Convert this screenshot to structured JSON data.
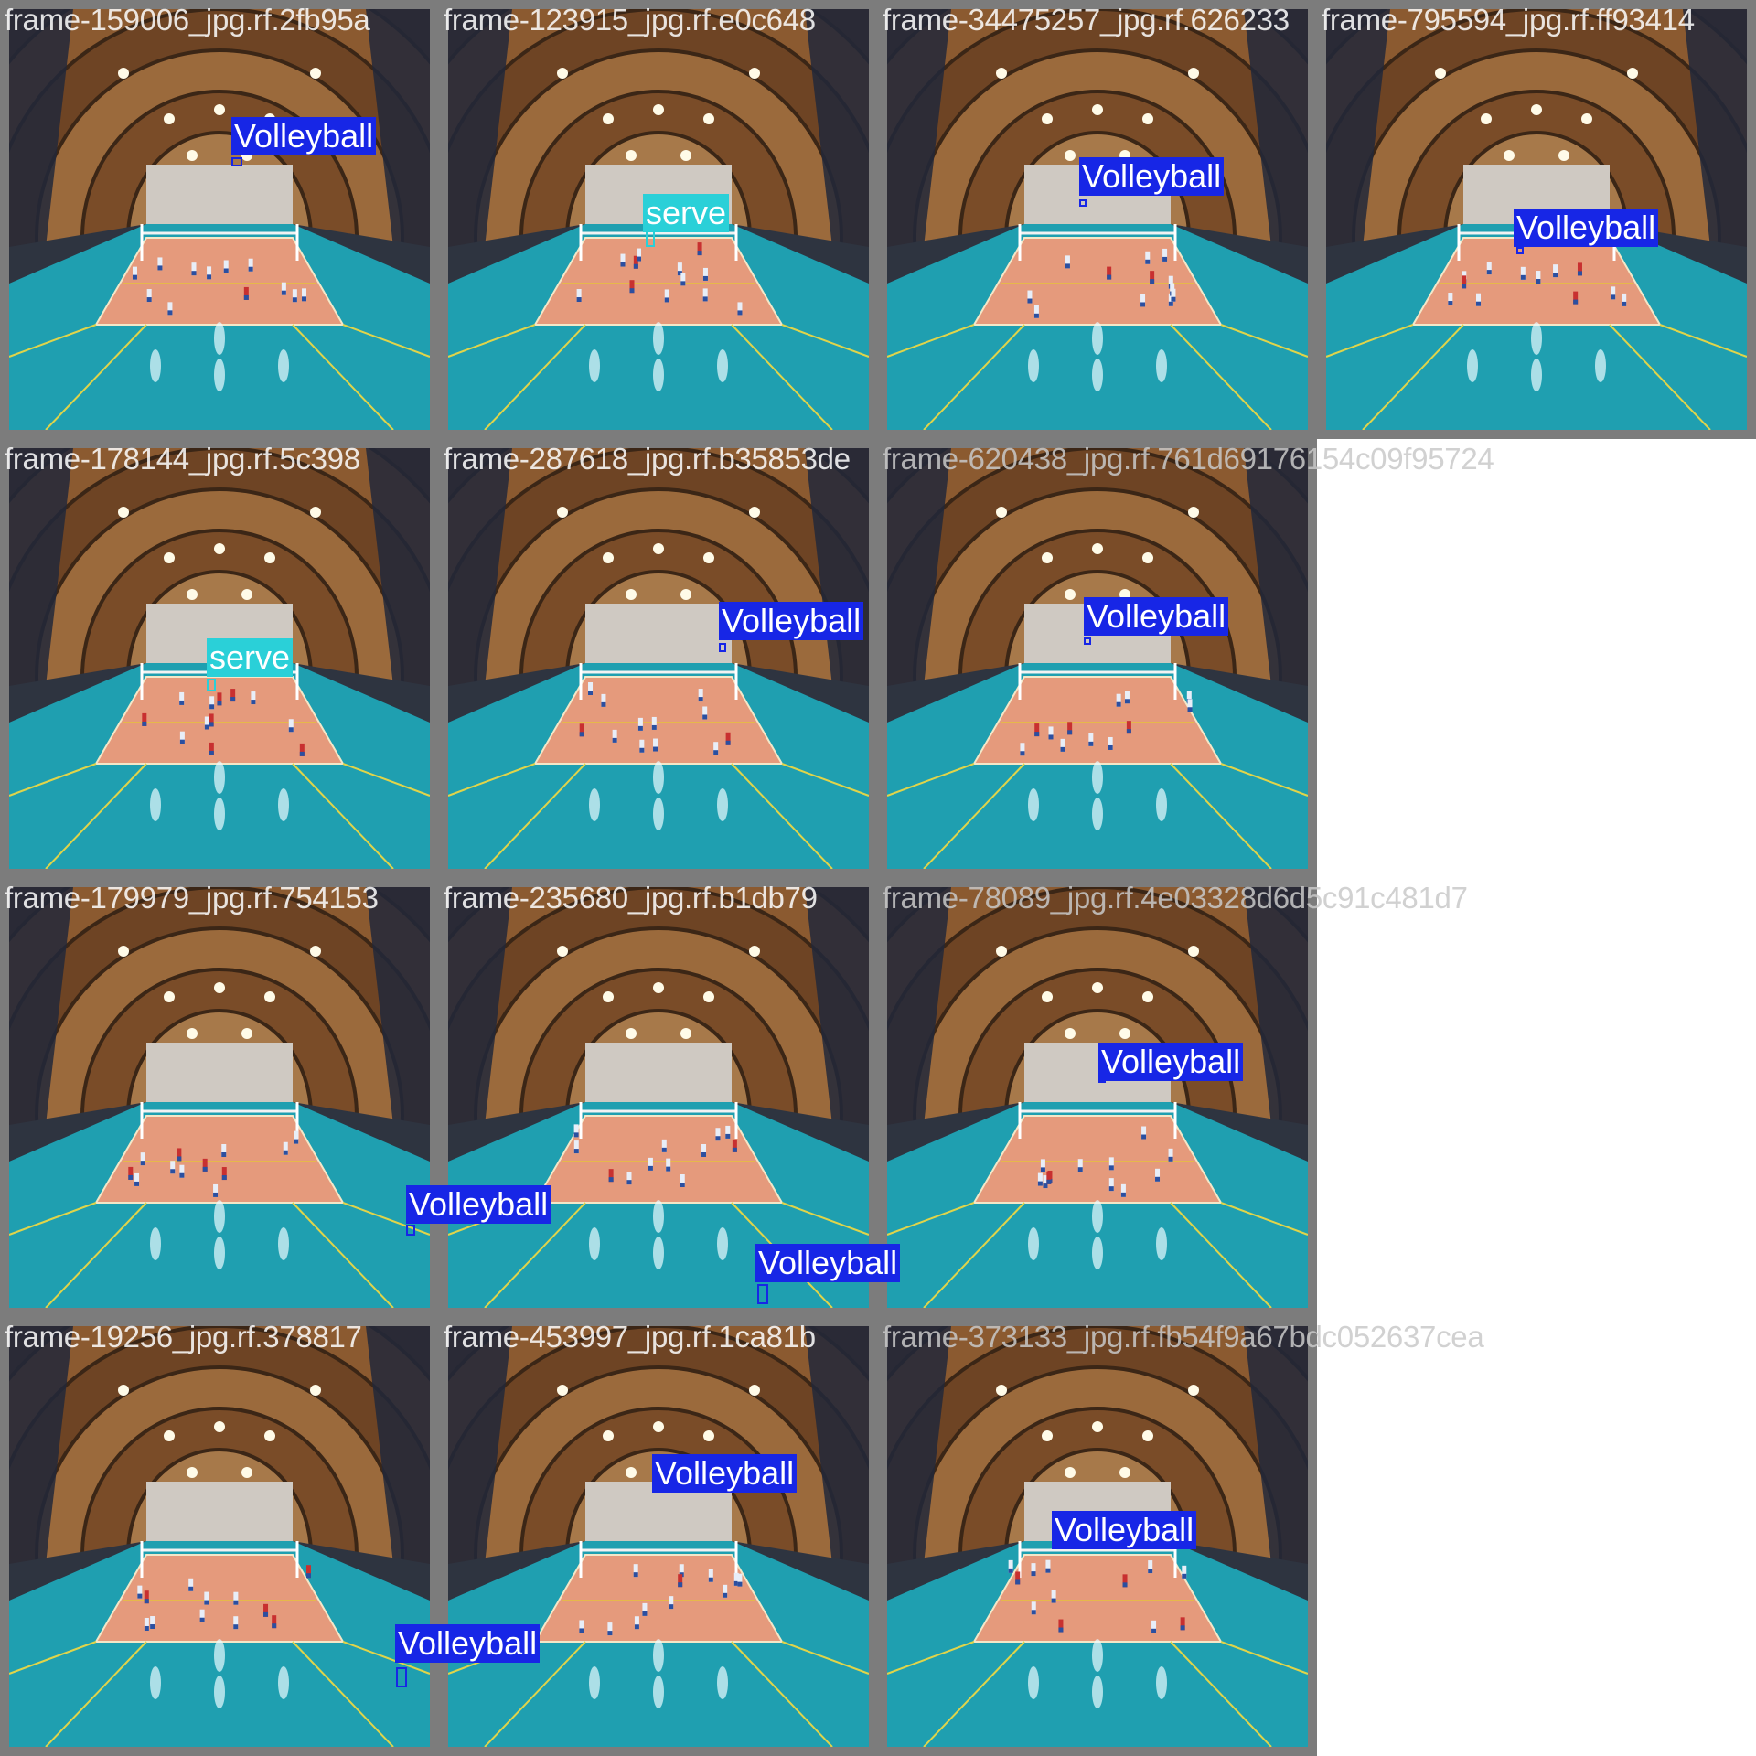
{
  "colors": {
    "volleyball": "#1726e6",
    "serve": "#2ad0d8",
    "tile_border": "#7c7c7c"
  },
  "tiles": [
    {
      "label": "frame-159006_jpg.rf.2fb95a",
      "scene": "court-view",
      "detections": [
        {
          "cls": "Volleyball"
        }
      ]
    },
    {
      "label": "frame-123915_jpg.rf.e0c648",
      "scene": "court-view",
      "detections": [
        {
          "cls": "serve"
        }
      ]
    },
    {
      "label": "frame-34475257_jpg.rf.626233",
      "scene": "court-view",
      "detections": [
        {
          "cls": "Volleyball"
        }
      ]
    },
    {
      "label": "frame-795594_jpg.rf.ff93414",
      "scene": "court-view",
      "detections": [
        {
          "cls": "Volleyball"
        }
      ]
    },
    {
      "label": "frame-178144_jpg.rf.5c398",
      "scene": "court-view",
      "detections": [
        {
          "cls": "serve"
        }
      ]
    },
    {
      "label": "frame-287618_jpg.rf.b35853de",
      "scene": "court-view",
      "detections": [
        {
          "cls": "Volleyball"
        }
      ]
    },
    {
      "label": "frame-620438_jpg.rf.761d69176154c09f95724",
      "scene": "court-view",
      "detections": [
        {
          "cls": "Volleyball"
        }
      ]
    },
    {
      "label": "frame-179979_jpg.rf.754153",
      "scene": "court-view",
      "detections": [
        {
          "cls": "Volleyball"
        }
      ]
    },
    {
      "label": "frame-235680_jpg.rf.b1db79",
      "scene": "court-view",
      "detections": [
        {
          "cls": "Volleyball"
        }
      ]
    },
    {
      "label": "frame-78089_jpg.rf.4e03328d6d5c91c481d7",
      "scene": "court-view",
      "detections": [
        {
          "cls": "Volleyball"
        }
      ]
    },
    {
      "label": "frame-19256_jpg.rf.378817",
      "scene": "court-view",
      "detections": [
        {
          "cls": "Volleyball"
        }
      ]
    },
    {
      "label": "frame-453997_jpg.rf.1ca81b",
      "scene": "court-view",
      "detections": [
        {
          "cls": "Volleyball"
        }
      ]
    },
    {
      "label": "frame-373133_jpg.rf.fb54f9a67bdc052637cea",
      "scene": "court-view",
      "detections": [
        {
          "cls": "Volleyball"
        }
      ]
    }
  ]
}
